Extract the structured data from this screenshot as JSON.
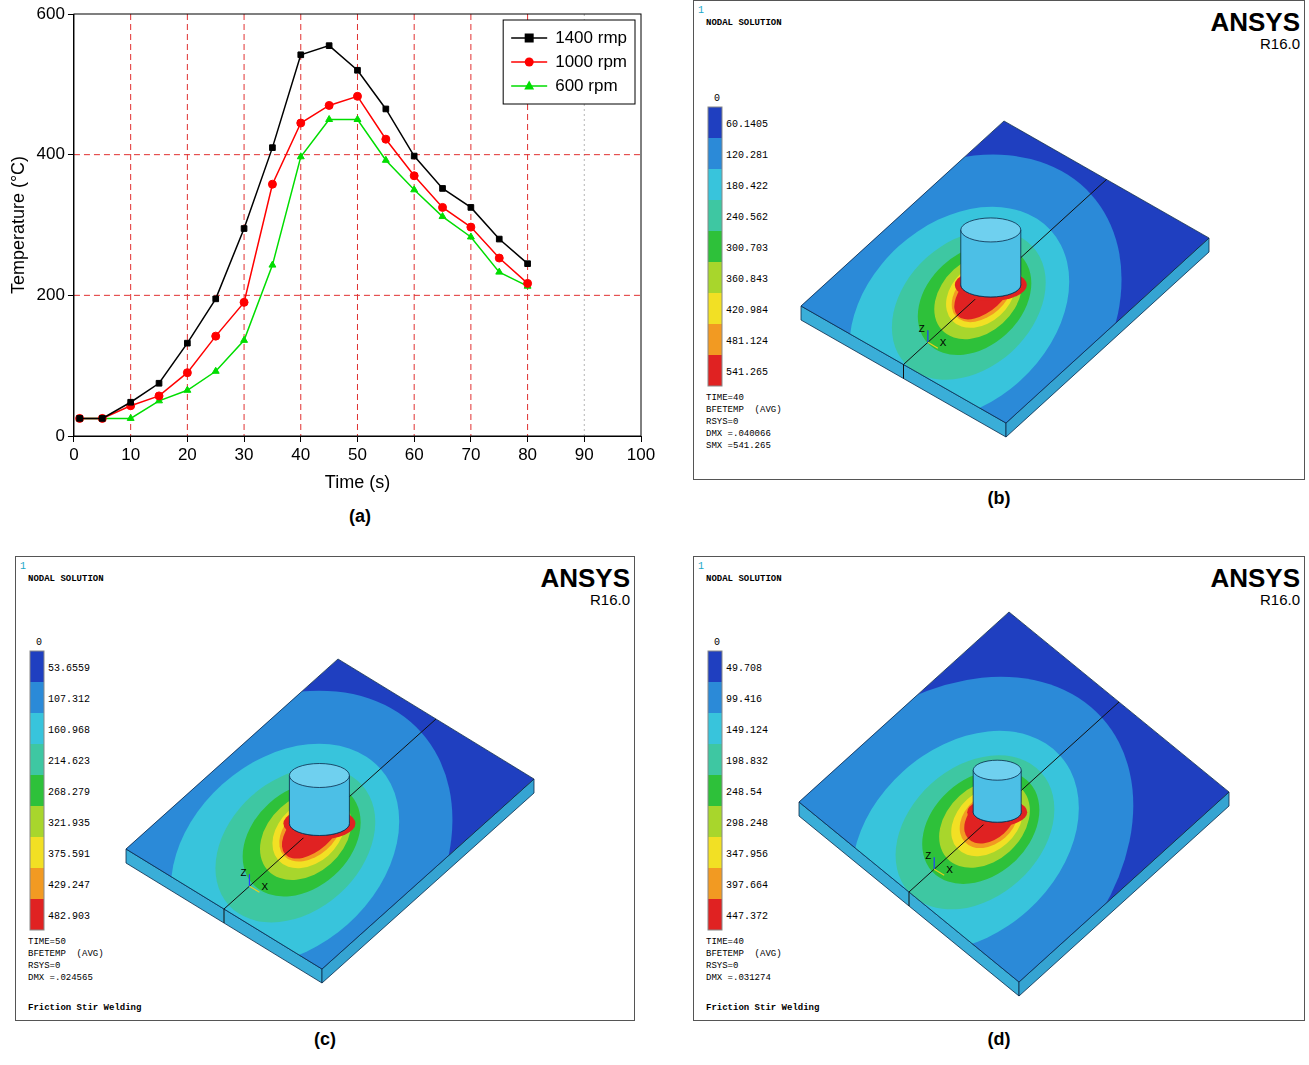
{
  "chart_data": {
    "type": "line",
    "label": "(a)",
    "x_label": "Time (s)",
    "y_label": "Temperature (°C)",
    "x": [
      1,
      5,
      10,
      15,
      20,
      25,
      30,
      35,
      40,
      45,
      50,
      55,
      60,
      65,
      70,
      75,
      80
    ],
    "series": [
      {
        "name": "1400 rmp",
        "color": "#000000",
        "marker": "square",
        "values": [
          25,
          25,
          48,
          75,
          132,
          195,
          295,
          410,
          542,
          555,
          520,
          465,
          398,
          352,
          325,
          280,
          245
        ]
      },
      {
        "name": "1000 rpm",
        "color": "#ff0000",
        "marker": "circle",
        "values": [
          25,
          25,
          43,
          57,
          90,
          142,
          190,
          358,
          445,
          470,
          483,
          422,
          370,
          325,
          297,
          253,
          217
        ]
      },
      {
        "name": "600 rpm",
        "color": "#00dd00",
        "marker": "triangle",
        "values": [
          25,
          25,
          25,
          50,
          65,
          92,
          136,
          243,
          397,
          450,
          450,
          392,
          350,
          312,
          283,
          233,
          213
        ]
      }
    ],
    "xlim": [
      0,
      100
    ],
    "xticks": [
      0,
      10,
      20,
      30,
      40,
      50,
      60,
      70,
      80,
      90,
      100
    ],
    "ylim": [
      0,
      600
    ],
    "yticks": [
      0,
      200,
      400,
      600
    ],
    "grid": true,
    "legend": "upper right"
  },
  "contour_panels": [
    {
      "label": "(b)",
      "corner_number": "1",
      "heading": "NODAL SOLUTION",
      "brand": "ANSYS",
      "version": "R16.0",
      "colorbar": {
        "ticks": [
          0,
          60.1405,
          120.281,
          180.422,
          240.562,
          300.703,
          360.843,
          420.984,
          481.124,
          541.265
        ]
      },
      "info": [
        "TIME=40",
        "BFETEMP  (AVG)",
        "RSYS=0",
        "DMX =.040066",
        "SMX =541.265"
      ],
      "triad": [
        "Z",
        "X"
      ]
    },
    {
      "label": "(c)",
      "corner_number": "1",
      "heading": "NODAL SOLUTION",
      "brand": "ANSYS",
      "version": "R16.0",
      "colorbar": {
        "ticks": [
          0,
          53.6559,
          107.312,
          160.968,
          214.623,
          268.279,
          321.935,
          375.591,
          429.247,
          482.903
        ]
      },
      "info": [
        "TIME=50",
        "BFETEMP  (AVG)",
        "RSYS=0",
        "DMX =.024565"
      ],
      "footer": "Friction Stir Welding",
      "triad": [
        "Z",
        "X"
      ]
    },
    {
      "label": "(d)",
      "corner_number": "1",
      "heading": "NODAL SOLUTION",
      "brand": "ANSYS",
      "version": "R16.0",
      "colorbar": {
        "ticks": [
          0,
          49.708,
          99.416,
          149.124,
          198.832,
          248.54,
          298.248,
          347.956,
          397.664,
          447.372
        ]
      },
      "info": [
        "TIME=40",
        "BFETEMP  (AVG)",
        "RSYS=0",
        "DMX =.031274"
      ],
      "footer": "Friction Stir Welding",
      "triad": [
        "Z",
        "X"
      ]
    }
  ]
}
